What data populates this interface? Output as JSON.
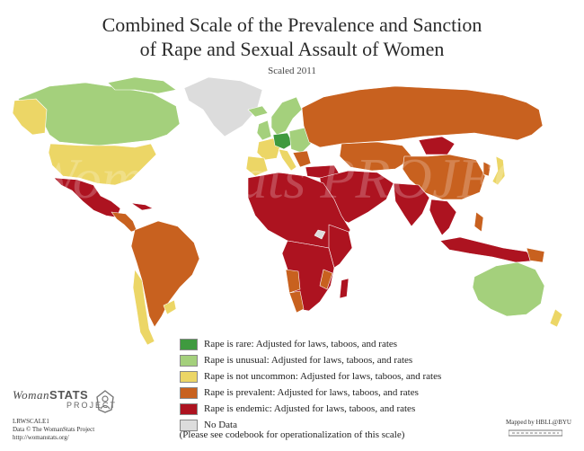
{
  "title_line1": "Combined Scale of the Prevalence and Sanction",
  "title_line2": "of Rape and Sexual Assault of Women",
  "subtitle": "Scaled 2011",
  "colors": {
    "rare": "#3f9a3f",
    "unusual": "#a4d07c",
    "uncommon": "#ecd666",
    "prevalent": "#c8611f",
    "endemic": "#ad1320",
    "no_data": "#dcdcdc",
    "water": "#ffffff"
  },
  "legend": [
    {
      "key": "rare",
      "label": "Rape is rare: Adjusted for laws, taboos, and rates"
    },
    {
      "key": "unusual",
      "label": "Rape is unusual: Adjusted for laws, taboos, and rates"
    },
    {
      "key": "uncommon",
      "label": "Rape is not uncommon: Adjusted for laws, taboos, and rates"
    },
    {
      "key": "prevalent",
      "label": "Rape is prevalent: Adjusted for laws, taboos, and rates"
    },
    {
      "key": "endemic",
      "label": "Rape is endemic: Adjusted for laws, taboos, and rates"
    },
    {
      "key": "no_data",
      "label": "No Data"
    }
  ],
  "note": "(Please see codebook for operationalization of this scale)",
  "logo": {
    "woman": "Woman",
    "stats": "STATS",
    "project": "PROJECT"
  },
  "credits": {
    "code": "LRWSCALE1",
    "data": "Data © The WomanStats Project",
    "url": "http://womanstats.org/"
  },
  "mapped_by": "Mapped by HBLL@BYU",
  "watermark_text": "Womanstats PROJECT"
}
